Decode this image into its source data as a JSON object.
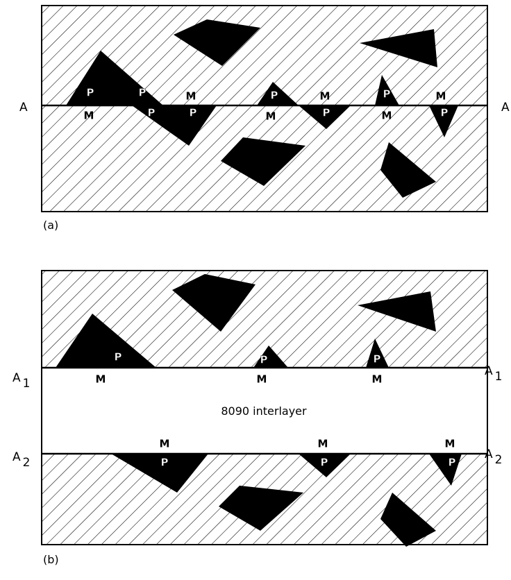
{
  "panel_a": {
    "label": "(a)",
    "line_left": "A",
    "line_right": "A",
    "markers": [
      "P",
      "M",
      "P",
      "P",
      "M",
      "P",
      "P",
      "M",
      "M",
      "P",
      "P",
      "M",
      "M",
      "P"
    ]
  },
  "panel_b": {
    "label": "(b)",
    "interlayer": "8090 interlayer",
    "line_1": {
      "letter": "A",
      "sub": "1"
    },
    "line_2": {
      "letter": "A",
      "sub": "2"
    },
    "markers_top": [
      "P",
      "M",
      "P",
      "M",
      "P",
      "M"
    ],
    "markers_bottom": [
      "M",
      "P",
      "M",
      "P",
      "M",
      "P"
    ]
  }
}
